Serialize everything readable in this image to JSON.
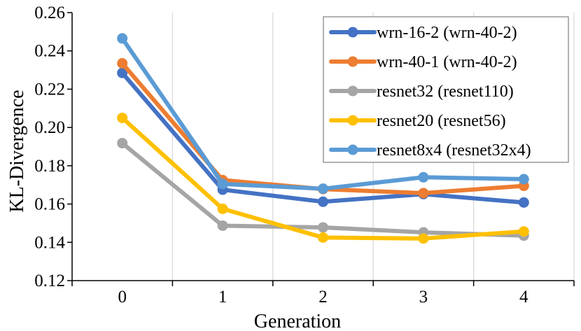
{
  "chart_data": {
    "type": "line",
    "title": "",
    "xlabel": "Generation",
    "ylabel": "KL-Divergence",
    "x": [
      0,
      1,
      2,
      3,
      4
    ],
    "xticks": [
      "0",
      "1",
      "2",
      "3",
      "4"
    ],
    "ylim": [
      0.12,
      0.26
    ],
    "yticks": [
      "0.12",
      "0.14",
      "0.16",
      "0.18",
      "0.20",
      "0.22",
      "0.24",
      "0.26"
    ],
    "grid": "vertical",
    "legend_position": "top-right",
    "series": [
      {
        "name": "wrn-16-2 (wrn-40-2)",
        "color": "#4472C4",
        "values": [
          0.2285,
          0.1675,
          0.1612,
          0.1652,
          0.1608
        ]
      },
      {
        "name": "wrn-40-1 (wrn-40-2)",
        "color": "#ED7D31",
        "values": [
          0.2335,
          0.1725,
          0.1678,
          0.1657,
          0.1695
        ]
      },
      {
        "name": "resnet32 (resnet110)",
        "color": "#A5A5A5",
        "values": [
          0.1918,
          0.1487,
          0.1478,
          0.1452,
          0.1435
        ]
      },
      {
        "name": "resnet20 (resnet56)",
        "color": "#FFC000",
        "values": [
          0.205,
          0.1575,
          0.1425,
          0.142,
          0.1457
        ]
      },
      {
        "name": "resnet8x4 (resnet32x4)",
        "color": "#5B9BD5",
        "values": [
          0.2465,
          0.1705,
          0.168,
          0.174,
          0.173
        ]
      }
    ]
  }
}
